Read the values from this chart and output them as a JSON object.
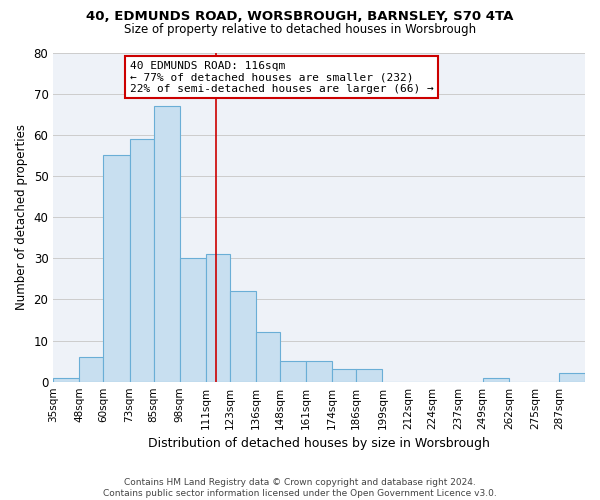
{
  "title": "40, EDMUNDS ROAD, WORSBROUGH, BARNSLEY, S70 4TA",
  "subtitle": "Size of property relative to detached houses in Worsbrough",
  "xlabel": "Distribution of detached houses by size in Worsbrough",
  "ylabel": "Number of detached properties",
  "footer_line1": "Contains HM Land Registry data © Crown copyright and database right 2024.",
  "footer_line2": "Contains public sector information licensed under the Open Government Licence v3.0.",
  "bin_labels": [
    "35sqm",
    "48sqm",
    "60sqm",
    "73sqm",
    "85sqm",
    "98sqm",
    "111sqm",
    "123sqm",
    "136sqm",
    "148sqm",
    "161sqm",
    "174sqm",
    "186sqm",
    "199sqm",
    "212sqm",
    "224sqm",
    "237sqm",
    "249sqm",
    "262sqm",
    "275sqm",
    "287sqm"
  ],
  "bar_heights": [
    1,
    6,
    55,
    59,
    67,
    30,
    31,
    22,
    12,
    5,
    5,
    3,
    3,
    0,
    0,
    0,
    0,
    1,
    0,
    0,
    2
  ],
  "bar_color": "#c8dff0",
  "bar_edge_color": "#6aaed6",
  "property_line_x": 116,
  "property_line_label": "40 EDMUNDS ROAD: 116sqm",
  "annotation_line1": "← 77% of detached houses are smaller (232)",
  "annotation_line2": "22% of semi-detached houses are larger (66) →",
  "annotation_box_color": "#ffffff",
  "annotation_box_edge": "#cc0000",
  "line_color": "#cc0000",
  "ylim": [
    0,
    80
  ],
  "bin_edges": [
    35,
    48,
    60,
    73,
    85,
    98,
    111,
    123,
    136,
    148,
    161,
    174,
    186,
    199,
    212,
    224,
    237,
    249,
    262,
    275,
    287,
    300
  ]
}
